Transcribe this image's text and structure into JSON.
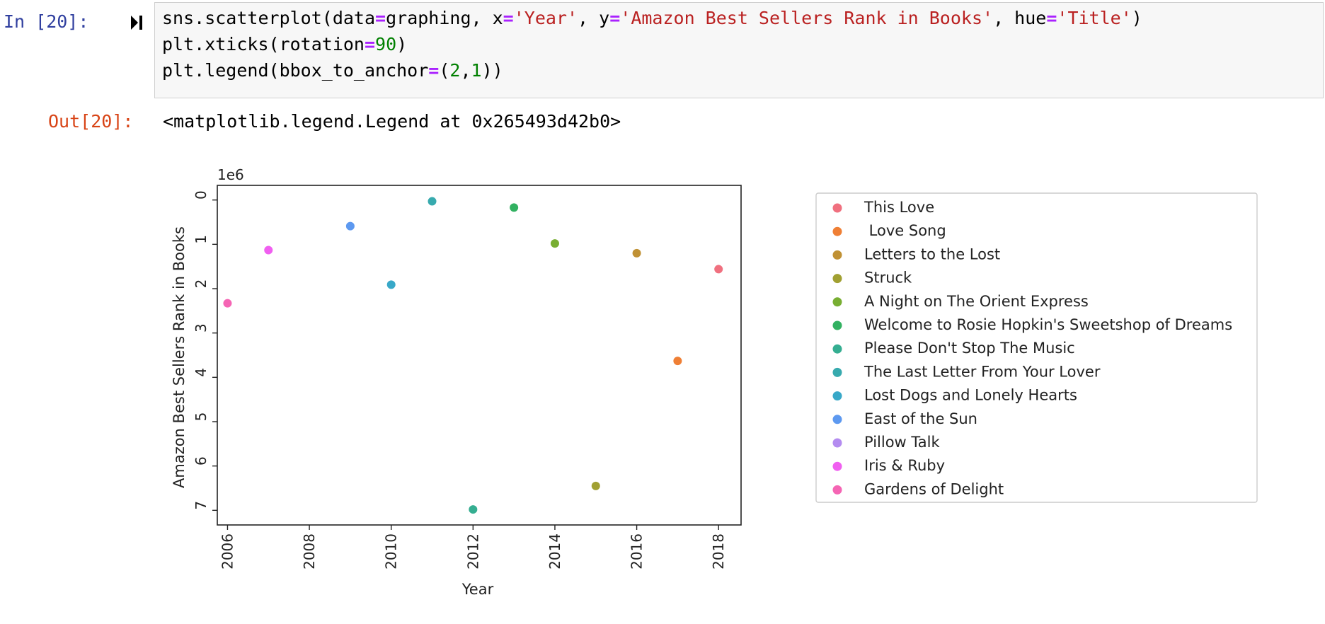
{
  "cell": {
    "in_prompt": "In [20]:",
    "out_prompt": "Out[20]:",
    "output_text": "<matplotlib.legend.Legend at 0x265493d42b0>",
    "code_lines": [
      [
        [
          "sns.scatterplot(data",
          ""
        ],
        [
          "=",
          "op"
        ],
        [
          "graphing, x",
          ""
        ],
        [
          "=",
          "op"
        ],
        [
          "'Year'",
          "str"
        ],
        [
          ", y",
          ""
        ],
        [
          "=",
          "op"
        ],
        [
          "'Amazon Best Sellers Rank in Books'",
          "str"
        ],
        [
          ", hue",
          ""
        ],
        [
          "=",
          "op"
        ],
        [
          "'Title'",
          "str"
        ],
        [
          ")",
          ""
        ]
      ],
      [
        [
          "plt.xticks(rotation",
          ""
        ],
        [
          "=",
          "op"
        ],
        [
          "90",
          "num"
        ],
        [
          ")",
          ""
        ]
      ],
      [
        [
          "plt.legend(bbox_to_anchor",
          ""
        ],
        [
          "=",
          "op"
        ],
        [
          "(",
          ""
        ],
        [
          "2",
          "num"
        ],
        [
          ",",
          ""
        ],
        [
          "1",
          "num"
        ],
        [
          "))",
          ""
        ]
      ]
    ]
  },
  "chart_data": {
    "type": "scatter",
    "title": "",
    "xlabel": "Year",
    "ylabel": "Amazon Best Sellers Rank in Books",
    "y_offset_text": "1e6",
    "y_inverted": true,
    "xlim": [
      2005.75,
      2018.55
    ],
    "ylim": [
      7.33,
      -0.33
    ],
    "x_ticks": [
      2006,
      2008,
      2010,
      2012,
      2014,
      2016,
      2018
    ],
    "y_ticks": [
      0,
      1,
      2,
      3,
      4,
      5,
      6,
      7
    ],
    "x_tick_labels": [
      "2006",
      "2008",
      "2010",
      "2012",
      "2014",
      "2016",
      "2018"
    ],
    "y_tick_labels": [
      "0",
      "1",
      "2",
      "3",
      "4",
      "5",
      "6",
      "7"
    ],
    "grid": false,
    "legend_placement": "outside-right",
    "series": [
      {
        "name": "This Love",
        "color": "#f0707f",
        "points": [
          [
            2018,
            1.56
          ]
        ]
      },
      {
        "name": " Love Song",
        "color": "#ef7f35",
        "points": [
          [
            2017,
            3.63
          ]
        ]
      },
      {
        "name": "Letters to the Lost",
        "color": "#c09134",
        "points": [
          [
            2016,
            1.2
          ]
        ]
      },
      {
        "name": "Struck",
        "color": "#a1a032",
        "points": [
          [
            2015,
            6.45
          ]
        ]
      },
      {
        "name": "A Night on The Orient Express",
        "color": "#78ae32",
        "points": [
          [
            2014,
            0.98
          ]
        ]
      },
      {
        "name": "Welcome to Rosie Hopkin's Sweetshop of Dreams",
        "color": "#32b161",
        "points": [
          [
            2013,
            0.17
          ]
        ]
      },
      {
        "name": "Please Don't Stop The Music",
        "color": "#35ae91",
        "points": [
          [
            2012,
            6.98
          ]
        ]
      },
      {
        "name": "The Last Letter From Your Lover",
        "color": "#37aaae",
        "points": [
          [
            2011,
            0.03
          ]
        ]
      },
      {
        "name": "Lost Dogs and Lonely Hearts",
        "color": "#38a8c8",
        "points": [
          [
            2010,
            1.91
          ]
        ]
      },
      {
        "name": "East of the Sun",
        "color": "#5d99f0",
        "points": [
          [
            2009,
            0.59
          ]
        ]
      },
      {
        "name": "Pillow Talk",
        "color": "#b48cf0",
        "points": []
      },
      {
        "name": "Iris & Ruby",
        "color": "#f05ff0",
        "points": [
          [
            2007,
            1.13
          ]
        ]
      },
      {
        "name": "Gardens of Delight",
        "color": "#f565b4",
        "points": [
          [
            2006,
            2.33
          ]
        ]
      }
    ]
  }
}
